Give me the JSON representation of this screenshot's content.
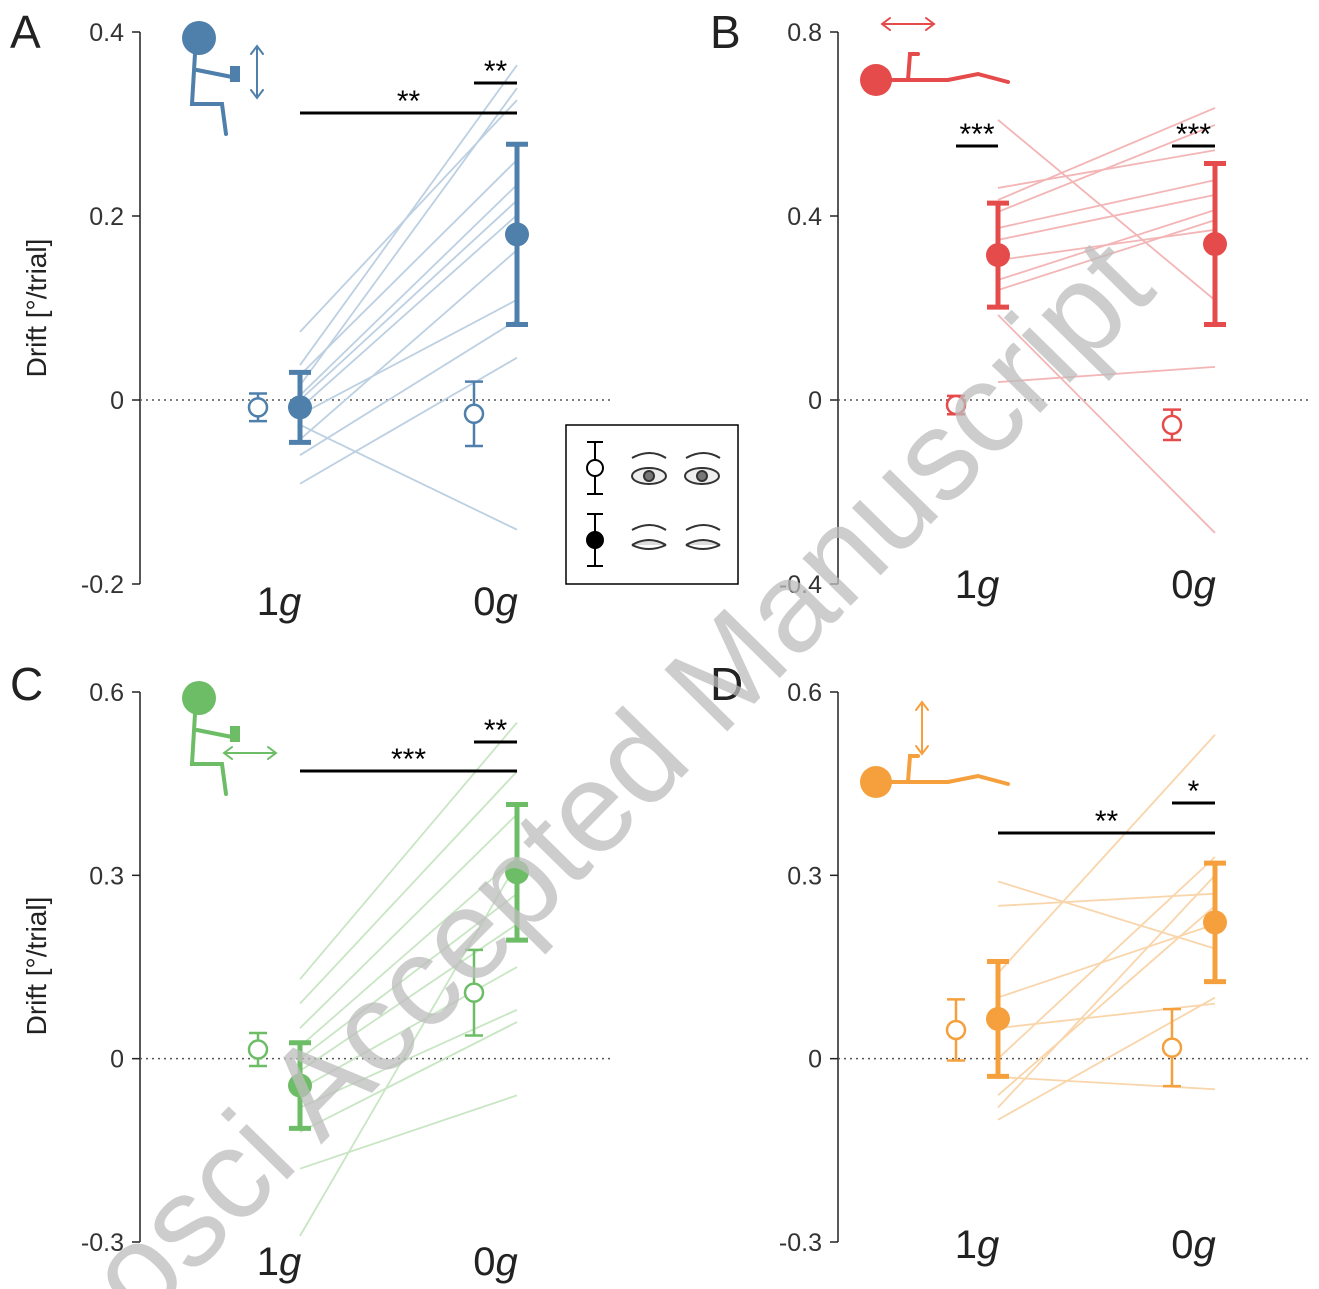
{
  "watermark": "osci Accepted Manuscript",
  "chart_data": [
    {
      "type": "paired-dots",
      "panel_label": "A",
      "ylabel": "Drift [°/trial]",
      "ylim": [
        -0.2,
        0.4
      ],
      "yticks": [
        -0.2,
        0,
        0.2,
        0.4
      ],
      "zero_line": true,
      "categories": [
        "1g",
        "0g"
      ],
      "color": "#4f7fab",
      "line_color": "#bcd0e2",
      "series": [
        {
          "fill": "open",
          "values": [
            -0.008,
            -0.015
          ],
          "errors": [
            0.015,
            0.035
          ]
        },
        {
          "fill": "filled",
          "values": [
            -0.008,
            0.18
          ],
          "errors": [
            0.038,
            0.098
          ]
        }
      ],
      "subjects": [
        [
          0.074,
          0.326
        ],
        [
          0.038,
          0.364
        ],
        [
          0.027,
          0.261
        ],
        [
          0.016,
          0.339
        ],
        [
          0.005,
          0.234
        ],
        [
          0,
          0.217
        ],
        [
          -0.009,
          0.201
        ],
        [
          -0.016,
          0.109
        ],
        [
          -0.027,
          -0.141
        ],
        [
          -0.043,
          0.163
        ],
        [
          -0.06,
          0.087
        ],
        [
          -0.091,
          0.046
        ]
      ],
      "annotations": [
        "**",
        "**"
      ]
    },
    {
      "type": "paired-dots",
      "panel_label": "B",
      "ylim": [
        -0.4,
        0.8
      ],
      "yticks": [
        -0.4,
        0,
        0.4,
        0.8
      ],
      "zero_line": true,
      "categories": [
        "1g",
        "0g"
      ],
      "color": "#e54b4b",
      "line_color": "#f3b5b5",
      "series": [
        {
          "fill": "open",
          "values": [
            -0.011,
            -0.054
          ],
          "errors": [
            0.02,
            0.033
          ]
        },
        {
          "fill": "filled",
          "values": [
            0.315,
            0.339
          ],
          "errors": [
            0.113,
            0.175
          ]
        }
      ],
      "subjects": [
        [
          0.435,
          0.635
        ],
        [
          0.461,
          0.543
        ],
        [
          0.409,
          0.598
        ],
        [
          0.374,
          0.478
        ],
        [
          0.348,
          0.446
        ],
        [
          0.304,
          0.37
        ],
        [
          0.261,
          0.413
        ],
        [
          0.609,
          0.217
        ],
        [
          0.185,
          -0.289
        ],
        [
          0.039,
          0.072
        ],
        [
          0.239,
          0.391
        ]
      ],
      "annotations": [
        "***",
        "***"
      ]
    },
    {
      "type": "paired-dots",
      "panel_label": "C",
      "ylabel": "Drift [°/trial]",
      "ylim": [
        -0.3,
        0.6
      ],
      "yticks": [
        -0.3,
        0,
        0.3,
        0.6
      ],
      "zero_line": true,
      "categories": [
        "1g",
        "0g"
      ],
      "color": "#6dbd67",
      "line_color": "#c8e6c3",
      "series": [
        {
          "fill": "open",
          "values": [
            0.015,
            0.108
          ],
          "errors": [
            0.027,
            0.07
          ]
        },
        {
          "fill": "filled",
          "values": [
            -0.044,
            0.305
          ],
          "errors": [
            0.07,
            0.111
          ]
        }
      ],
      "subjects": [
        [
          0.13,
          0.55
        ],
        [
          0.09,
          0.47
        ],
        [
          0.05,
          0.4
        ],
        [
          0.02,
          0.33
        ],
        [
          0,
          0.27
        ],
        [
          -0.02,
          0.22
        ],
        [
          -0.05,
          0.15
        ],
        [
          -0.08,
          0.08
        ],
        [
          -0.12,
          0.06
        ],
        [
          -0.18,
          -0.06
        ],
        [
          -0.29,
          0.32
        ]
      ],
      "annotations": [
        "***",
        "**"
      ]
    },
    {
      "type": "paired-dots",
      "panel_label": "D",
      "ylim": [
        -0.3,
        0.6
      ],
      "yticks": [
        -0.3,
        0,
        0.3,
        0.6
      ],
      "zero_line": true,
      "categories": [
        "1g",
        "0g"
      ],
      "color": "#f5a03d",
      "line_color": "#f9d5ab",
      "series": [
        {
          "fill": "open",
          "values": [
            0.047,
            0.018
          ],
          "errors": [
            0.05,
            0.063
          ]
        },
        {
          "fill": "filled",
          "values": [
            0.065,
            0.223
          ],
          "errors": [
            0.094,
            0.097
          ]
        }
      ],
      "subjects": [
        [
          0.29,
          0.18
        ],
        [
          0.25,
          0.27
        ],
        [
          0.14,
          0.53
        ],
        [
          0.1,
          0.22
        ],
        [
          0.05,
          0.09
        ],
        [
          0,
          0.33
        ],
        [
          -0.03,
          -0.05
        ],
        [
          -0.06,
          0.25
        ],
        [
          -0.08,
          0.3
        ],
        [
          -0.1,
          0.1
        ]
      ],
      "annotations": [
        "**",
        "*"
      ]
    }
  ]
}
